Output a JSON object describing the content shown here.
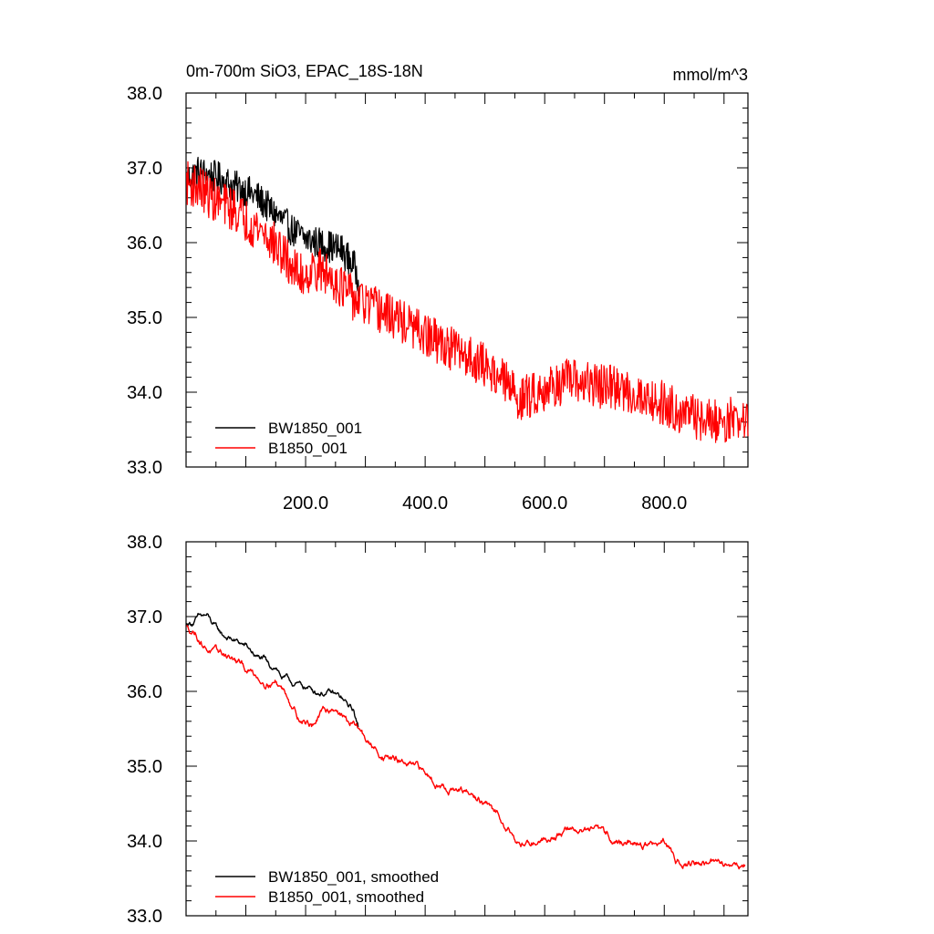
{
  "chart_data": [
    {
      "type": "line",
      "title": "0m-700m SiO3, EPAC_18S-18N",
      "units": "mmol/m^3",
      "xlim": [
        0,
        940
      ],
      "ylim": [
        33.0,
        38.0
      ],
      "x_ticks": [
        200,
        400,
        600,
        800
      ],
      "x_tick_labels": [
        "200.0",
        "400.0",
        "600.0",
        "800.0"
      ],
      "y_ticks": [
        33,
        34,
        35,
        36,
        37,
        38
      ],
      "y_tick_labels": [
        "33.0",
        "34.0",
        "35.0",
        "36.0",
        "37.0",
        "38.0"
      ],
      "legend_position": "bottom-left",
      "series": [
        {
          "name": "BW1850_001",
          "color": "#000000",
          "noise": 0.22,
          "x": [
            1,
            20,
            40,
            60,
            80,
            100,
            120,
            140,
            160,
            180,
            200,
            220,
            240,
            260,
            280,
            290
          ],
          "y": [
            36.85,
            36.95,
            36.9,
            36.85,
            36.75,
            36.7,
            36.6,
            36.45,
            36.3,
            36.15,
            36.05,
            36.0,
            35.95,
            35.9,
            35.7,
            35.5
          ]
        },
        {
          "name": "B1850_001",
          "color": "#ff0000",
          "noise": 0.3,
          "x": [
            1,
            20,
            50,
            80,
            100,
            130,
            160,
            190,
            220,
            250,
            280,
            320,
            360,
            400,
            440,
            480,
            520,
            560,
            600,
            640,
            680,
            720,
            760,
            800,
            840,
            880,
            920,
            940
          ],
          "y": [
            36.8,
            36.75,
            36.55,
            36.45,
            36.3,
            36.15,
            35.85,
            35.55,
            35.65,
            35.5,
            35.25,
            35.1,
            34.95,
            34.75,
            34.6,
            34.45,
            34.25,
            33.9,
            34.05,
            34.15,
            34.1,
            34.05,
            33.95,
            33.85,
            33.7,
            33.6,
            33.65,
            33.6
          ]
        }
      ]
    },
    {
      "type": "line",
      "xlim": [
        0,
        940
      ],
      "ylim": [
        33.0,
        38.0
      ],
      "y_ticks": [
        33,
        34,
        35,
        36,
        37,
        38
      ],
      "y_tick_labels": [
        "33.0",
        "34.0",
        "35.0",
        "36.0",
        "37.0",
        "38.0"
      ],
      "legend_position": "bottom-left",
      "series": [
        {
          "name": "BW1850_001, smoothed",
          "color": "#000000",
          "noise": 0.05,
          "x": [
            1,
            10,
            20,
            35,
            45,
            60,
            80,
            100,
            120,
            130,
            140,
            150,
            160,
            180,
            200,
            220,
            240,
            260,
            270,
            280,
            288
          ],
          "y": [
            36.9,
            36.92,
            36.98,
            37.0,
            36.88,
            36.75,
            36.68,
            36.6,
            36.45,
            36.42,
            36.3,
            36.35,
            36.2,
            36.1,
            36.05,
            36.0,
            35.98,
            35.9,
            35.8,
            35.75,
            35.5
          ]
        },
        {
          "name": "B1850_001, smoothed",
          "color": "#ff0000",
          "noise": 0.06,
          "x": [
            1,
            15,
            30,
            50,
            70,
            90,
            110,
            130,
            150,
            170,
            190,
            210,
            230,
            250,
            270,
            290,
            310,
            330,
            360,
            400,
            430,
            460,
            490,
            520,
            540,
            560,
            600,
            640,
            680,
            720,
            760,
            800,
            820,
            840,
            870,
            900,
            935
          ],
          "y": [
            36.85,
            36.8,
            36.62,
            36.5,
            36.48,
            36.35,
            36.25,
            36.15,
            36.15,
            35.95,
            35.65,
            35.55,
            35.72,
            35.8,
            35.6,
            35.5,
            35.25,
            35.15,
            35.05,
            34.9,
            34.75,
            34.65,
            34.55,
            34.35,
            34.2,
            33.95,
            34.05,
            34.15,
            34.15,
            34.0,
            33.95,
            33.95,
            33.75,
            33.72,
            33.7,
            33.7,
            33.68
          ]
        }
      ]
    }
  ]
}
